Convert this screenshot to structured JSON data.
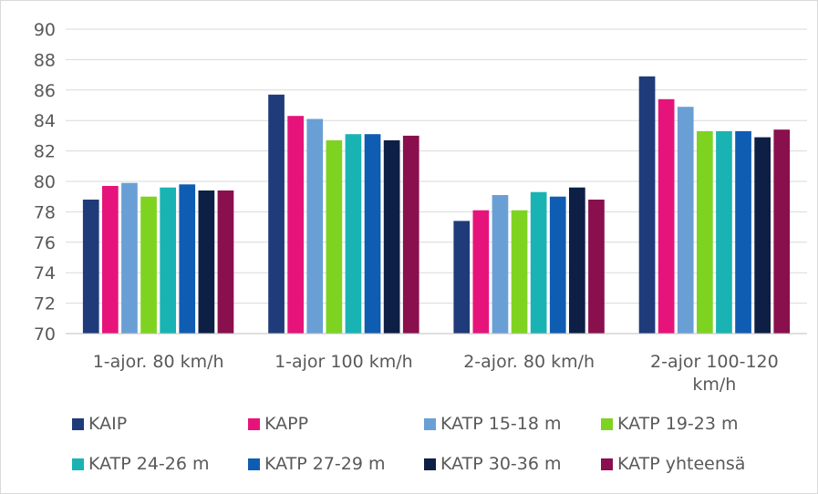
{
  "chart_data": {
    "type": "bar",
    "categories": [
      [
        "1-ajor. 80 km/h"
      ],
      [
        "1-ajor 100 km/h"
      ],
      [
        "2-ajor. 80 km/h"
      ],
      [
        "2-ajor 100-120",
        "km/h"
      ]
    ],
    "series": [
      {
        "name": "KAIP",
        "color": "#1f3b7a",
        "values": [
          78.8,
          85.7,
          77.4,
          86.9
        ]
      },
      {
        "name": "KAPP",
        "color": "#e6147a",
        "values": [
          79.7,
          84.3,
          78.1,
          85.4
        ]
      },
      {
        "name": "KATP 15-18 m",
        "color": "#6a9fd6",
        "values": [
          79.9,
          84.1,
          79.1,
          84.9
        ]
      },
      {
        "name": "KATP 19-23 m",
        "color": "#7ed321",
        "values": [
          79.0,
          82.7,
          78.1,
          83.3
        ]
      },
      {
        "name": "KATP 24-26 m",
        "color": "#1ab3b3",
        "values": [
          79.6,
          83.1,
          79.3,
          83.3
        ]
      },
      {
        "name": "KATP 27-29 m",
        "color": "#0f5cb3",
        "values": [
          79.8,
          83.1,
          79.0,
          83.3
        ]
      },
      {
        "name": "KATP 30-36 m",
        "color": "#0d1f45",
        "values": [
          79.4,
          82.7,
          79.6,
          82.9
        ]
      },
      {
        "name": "KATP yhteensä",
        "color": "#8a0f4d",
        "values": [
          79.4,
          83.0,
          78.8,
          83.4
        ]
      }
    ],
    "ylim": [
      70,
      90
    ],
    "yticks": [
      70,
      72,
      74,
      76,
      78,
      80,
      82,
      84,
      86,
      88,
      90
    ],
    "grid": true,
    "legend_position": "bottom",
    "title": "",
    "xlabel": "",
    "ylabel": ""
  }
}
